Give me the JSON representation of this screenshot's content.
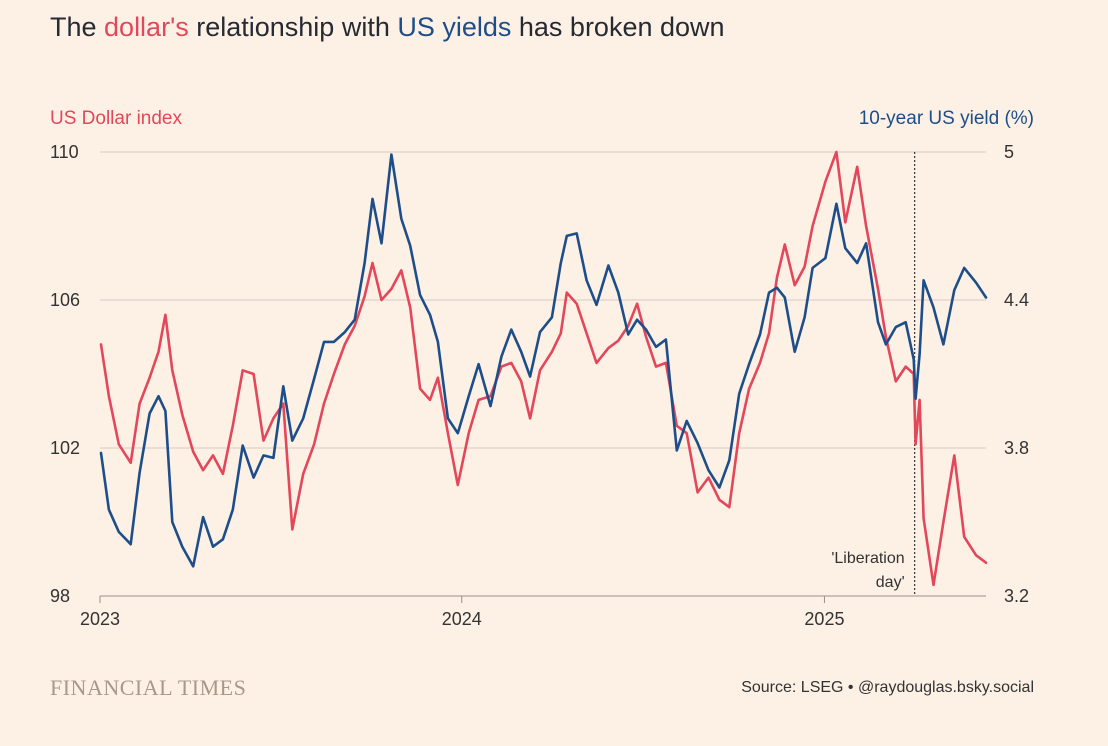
{
  "title": {
    "part1": "The ",
    "part2": "dollar's",
    "part3": " relationship with ",
    "part4": "US yields",
    "part5": " has broken down"
  },
  "colors": {
    "dollar": "#e3475a",
    "yield": "#1d4e89",
    "background": "#fdf1e6",
    "grid": "#d6cbc2"
  },
  "footer": {
    "brand": "FINANCIAL TIMES",
    "source": "Source: LSEG • @raydouglas.bsky.social"
  },
  "chart_data": {
    "type": "line",
    "ylabel_left": "US Dollar index",
    "ylabel_right": "10-year US yield (%)",
    "ylim_left": [
      98,
      110
    ],
    "ylim_right": [
      3.2,
      5.0
    ],
    "yticks_left": [
      "98",
      "102",
      "106",
      "110"
    ],
    "yticks_right": [
      "3.2",
      "3.8",
      "4.4",
      "5"
    ],
    "xlim": [
      "2023-01-01",
      "2025-06-13"
    ],
    "xticks": [
      {
        "date": "2023-01-01",
        "label": "2023"
      },
      {
        "date": "2024-01-01",
        "label": "2024"
      },
      {
        "date": "2025-01-01",
        "label": "2025"
      }
    ],
    "annotation": {
      "date": "2025-04-02",
      "lines": [
        "'Liberation",
        "day'"
      ]
    },
    "grid": true,
    "series": [
      {
        "name": "dollar's",
        "axis": "left",
        "points": [
          [
            "2023-01-02",
            104.8
          ],
          [
            "2023-01-10",
            103.4
          ],
          [
            "2023-01-20",
            102.1
          ],
          [
            "2023-02-01",
            101.6
          ],
          [
            "2023-02-10",
            103.2
          ],
          [
            "2023-02-20",
            103.9
          ],
          [
            "2023-03-01",
            104.6
          ],
          [
            "2023-03-08",
            105.6
          ],
          [
            "2023-03-15",
            104.1
          ],
          [
            "2023-03-25",
            102.9
          ],
          [
            "2023-04-05",
            101.9
          ],
          [
            "2023-04-15",
            101.4
          ],
          [
            "2023-04-25",
            101.8
          ],
          [
            "2023-05-05",
            101.3
          ],
          [
            "2023-05-15",
            102.6
          ],
          [
            "2023-05-25",
            104.1
          ],
          [
            "2023-06-05",
            104.0
          ],
          [
            "2023-06-15",
            102.2
          ],
          [
            "2023-06-25",
            102.8
          ],
          [
            "2023-07-05",
            103.2
          ],
          [
            "2023-07-14",
            99.8
          ],
          [
            "2023-07-25",
            101.3
          ],
          [
            "2023-08-05",
            102.1
          ],
          [
            "2023-08-15",
            103.2
          ],
          [
            "2023-08-25",
            104.0
          ],
          [
            "2023-09-05",
            104.8
          ],
          [
            "2023-09-15",
            105.3
          ],
          [
            "2023-09-25",
            106.1
          ],
          [
            "2023-10-03",
            107.0
          ],
          [
            "2023-10-12",
            106.0
          ],
          [
            "2023-10-22",
            106.3
          ],
          [
            "2023-11-01",
            106.8
          ],
          [
            "2023-11-10",
            105.8
          ],
          [
            "2023-11-20",
            103.6
          ],
          [
            "2023-11-30",
            103.3
          ],
          [
            "2023-12-08",
            103.9
          ],
          [
            "2023-12-18",
            102.4
          ],
          [
            "2023-12-28",
            101.0
          ],
          [
            "2024-01-08",
            102.4
          ],
          [
            "2024-01-18",
            103.3
          ],
          [
            "2024-01-30",
            103.4
          ],
          [
            "2024-02-10",
            104.2
          ],
          [
            "2024-02-20",
            104.3
          ],
          [
            "2024-03-01",
            103.8
          ],
          [
            "2024-03-10",
            102.8
          ],
          [
            "2024-03-20",
            104.1
          ],
          [
            "2024-04-01",
            104.6
          ],
          [
            "2024-04-10",
            105.1
          ],
          [
            "2024-04-16",
            106.2
          ],
          [
            "2024-04-26",
            105.9
          ],
          [
            "2024-05-06",
            105.1
          ],
          [
            "2024-05-16",
            104.3
          ],
          [
            "2024-05-28",
            104.7
          ],
          [
            "2024-06-07",
            104.9
          ],
          [
            "2024-06-17",
            105.3
          ],
          [
            "2024-06-26",
            105.9
          ],
          [
            "2024-07-05",
            105.0
          ],
          [
            "2024-07-15",
            104.2
          ],
          [
            "2024-07-25",
            104.3
          ],
          [
            "2024-08-05",
            102.6
          ],
          [
            "2024-08-15",
            102.4
          ],
          [
            "2024-08-26",
            100.8
          ],
          [
            "2024-09-06",
            101.2
          ],
          [
            "2024-09-17",
            100.6
          ],
          [
            "2024-09-27",
            100.4
          ],
          [
            "2024-10-07",
            102.4
          ],
          [
            "2024-10-17",
            103.6
          ],
          [
            "2024-10-28",
            104.3
          ],
          [
            "2024-11-06",
            105.1
          ],
          [
            "2024-11-14",
            106.6
          ],
          [
            "2024-11-22",
            107.5
          ],
          [
            "2024-12-02",
            106.4
          ],
          [
            "2024-12-12",
            106.9
          ],
          [
            "2024-12-20",
            108.0
          ],
          [
            "2025-01-02",
            109.2
          ],
          [
            "2025-01-13",
            110.0
          ],
          [
            "2025-01-22",
            108.1
          ],
          [
            "2025-02-03",
            109.6
          ],
          [
            "2025-02-12",
            108.0
          ],
          [
            "2025-02-24",
            106.3
          ],
          [
            "2025-03-04",
            105.0
          ],
          [
            "2025-03-14",
            103.8
          ],
          [
            "2025-03-24",
            104.2
          ],
          [
            "2025-04-01",
            104.0
          ],
          [
            "2025-04-03",
            102.1
          ],
          [
            "2025-04-07",
            103.3
          ],
          [
            "2025-04-11",
            100.1
          ],
          [
            "2025-04-21",
            98.3
          ],
          [
            "2025-05-01",
            100.0
          ],
          [
            "2025-05-12",
            101.8
          ],
          [
            "2025-05-22",
            99.6
          ],
          [
            "2025-06-03",
            99.1
          ],
          [
            "2025-06-13",
            98.9
          ]
        ]
      },
      {
        "name": "US yields",
        "axis": "right",
        "points": [
          [
            "2023-01-02",
            3.78
          ],
          [
            "2023-01-10",
            3.55
          ],
          [
            "2023-01-20",
            3.46
          ],
          [
            "2023-02-01",
            3.41
          ],
          [
            "2023-02-10",
            3.7
          ],
          [
            "2023-02-20",
            3.94
          ],
          [
            "2023-03-01",
            4.01
          ],
          [
            "2023-03-08",
            3.95
          ],
          [
            "2023-03-15",
            3.5
          ],
          [
            "2023-03-25",
            3.4
          ],
          [
            "2023-04-05",
            3.32
          ],
          [
            "2023-04-15",
            3.52
          ],
          [
            "2023-04-25",
            3.4
          ],
          [
            "2023-05-05",
            3.43
          ],
          [
            "2023-05-15",
            3.55
          ],
          [
            "2023-05-25",
            3.81
          ],
          [
            "2023-06-05",
            3.68
          ],
          [
            "2023-06-15",
            3.77
          ],
          [
            "2023-06-25",
            3.76
          ],
          [
            "2023-07-05",
            4.05
          ],
          [
            "2023-07-14",
            3.83
          ],
          [
            "2023-07-25",
            3.92
          ],
          [
            "2023-08-05",
            4.08
          ],
          [
            "2023-08-15",
            4.23
          ],
          [
            "2023-08-25",
            4.23
          ],
          [
            "2023-09-05",
            4.27
          ],
          [
            "2023-09-15",
            4.32
          ],
          [
            "2023-09-25",
            4.55
          ],
          [
            "2023-10-03",
            4.81
          ],
          [
            "2023-10-12",
            4.63
          ],
          [
            "2023-10-22",
            4.99
          ],
          [
            "2023-11-01",
            4.73
          ],
          [
            "2023-11-10",
            4.62
          ],
          [
            "2023-11-20",
            4.42
          ],
          [
            "2023-11-30",
            4.34
          ],
          [
            "2023-12-08",
            4.23
          ],
          [
            "2023-12-18",
            3.92
          ],
          [
            "2023-12-28",
            3.86
          ],
          [
            "2024-01-08",
            4.01
          ],
          [
            "2024-01-18",
            4.14
          ],
          [
            "2024-01-30",
            3.97
          ],
          [
            "2024-02-10",
            4.17
          ],
          [
            "2024-02-20",
            4.28
          ],
          [
            "2024-03-01",
            4.19
          ],
          [
            "2024-03-10",
            4.09
          ],
          [
            "2024-03-20",
            4.27
          ],
          [
            "2024-04-01",
            4.33
          ],
          [
            "2024-04-10",
            4.55
          ],
          [
            "2024-04-16",
            4.66
          ],
          [
            "2024-04-26",
            4.67
          ],
          [
            "2024-05-06",
            4.48
          ],
          [
            "2024-05-16",
            4.38
          ],
          [
            "2024-05-28",
            4.54
          ],
          [
            "2024-06-07",
            4.43
          ],
          [
            "2024-06-17",
            4.26
          ],
          [
            "2024-06-26",
            4.32
          ],
          [
            "2024-07-05",
            4.28
          ],
          [
            "2024-07-15",
            4.21
          ],
          [
            "2024-07-25",
            4.24
          ],
          [
            "2024-08-05",
            3.79
          ],
          [
            "2024-08-15",
            3.91
          ],
          [
            "2024-08-26",
            3.82
          ],
          [
            "2024-09-06",
            3.71
          ],
          [
            "2024-09-17",
            3.64
          ],
          [
            "2024-09-27",
            3.75
          ],
          [
            "2024-10-07",
            4.02
          ],
          [
            "2024-10-17",
            4.14
          ],
          [
            "2024-10-28",
            4.26
          ],
          [
            "2024-11-06",
            4.43
          ],
          [
            "2024-11-14",
            4.45
          ],
          [
            "2024-11-22",
            4.41
          ],
          [
            "2024-12-02",
            4.19
          ],
          [
            "2024-12-12",
            4.33
          ],
          [
            "2024-12-20",
            4.53
          ],
          [
            "2025-01-02",
            4.57
          ],
          [
            "2025-01-13",
            4.79
          ],
          [
            "2025-01-22",
            4.61
          ],
          [
            "2025-02-03",
            4.55
          ],
          [
            "2025-02-12",
            4.63
          ],
          [
            "2025-02-24",
            4.31
          ],
          [
            "2025-03-04",
            4.22
          ],
          [
            "2025-03-14",
            4.29
          ],
          [
            "2025-03-24",
            4.31
          ],
          [
            "2025-04-01",
            4.16
          ],
          [
            "2025-04-03",
            4.0
          ],
          [
            "2025-04-07",
            4.18
          ],
          [
            "2025-04-11",
            4.48
          ],
          [
            "2025-04-21",
            4.37
          ],
          [
            "2025-05-01",
            4.22
          ],
          [
            "2025-05-12",
            4.44
          ],
          [
            "2025-05-22",
            4.53
          ],
          [
            "2025-06-03",
            4.47
          ],
          [
            "2025-06-13",
            4.41
          ]
        ]
      }
    ]
  }
}
